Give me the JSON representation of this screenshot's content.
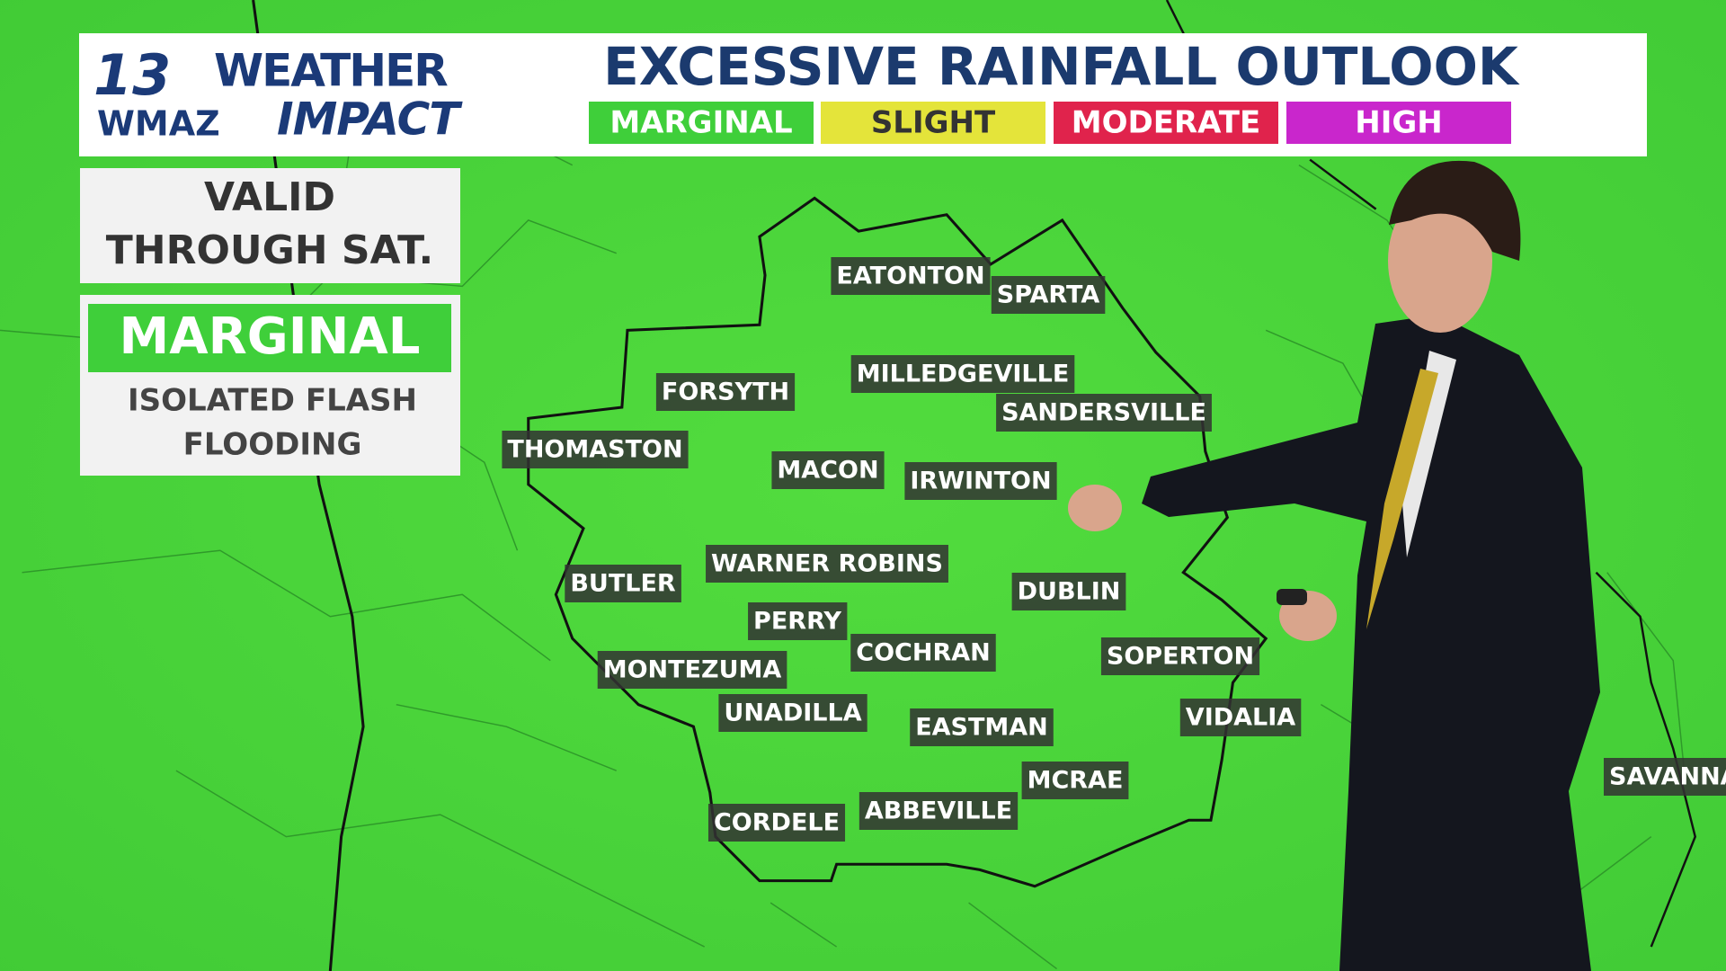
{
  "logo": {
    "channel": "13",
    "station": "WMAZ",
    "brand_top": "WEATHER",
    "brand_bottom": "IMPACT"
  },
  "header": {
    "title": "EXCESSIVE RAINFALL OUTLOOK",
    "categories": [
      {
        "label": "MARGINAL",
        "color": "#3fcf3a",
        "text_color": "#ffffff"
      },
      {
        "label": "SLIGHT",
        "color": "#e4e43a",
        "text_color": "#333333"
      },
      {
        "label": "MODERATE",
        "color": "#e0234c",
        "text_color": "#ffffff"
      },
      {
        "label": "HIGH",
        "color": "#c926cc",
        "text_color": "#ffffff"
      }
    ]
  },
  "valid": {
    "lines": [
      "VALID",
      "THROUGH SAT."
    ]
  },
  "risk": {
    "level": "MARGINAL",
    "description": [
      "ISOLATED FLASH",
      "FLOODING"
    ]
  },
  "cities": [
    "EATONTON",
    "SPARTA",
    "MILLEDGEVILLE",
    "SANDERSVILLE",
    "FORSYTH",
    "THOMASTON",
    "MACON",
    "IRWINTON",
    "WARNER ROBINS",
    "BUTLER",
    "DUBLIN",
    "PERRY",
    "COCHRAN",
    "SOPERTON",
    "MONTEZUMA",
    "UNADILLA",
    "EASTMAN",
    "VIDALIA",
    "MCRAE",
    "ABBEVILLE",
    "CORDELE",
    "SAVANNA"
  ]
}
